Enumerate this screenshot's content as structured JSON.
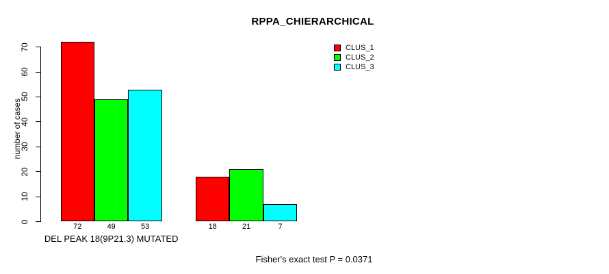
{
  "chart_data": {
    "type": "bar",
    "title": "RPPA_CHIERARCHICAL",
    "ylabel": "number of cases",
    "ylim": [
      0,
      70
    ],
    "yticks": [
      0,
      10,
      20,
      30,
      40,
      50,
      60,
      70
    ],
    "grid": false,
    "legend_position": "top-right",
    "group_labels": [
      "DEL PEAK 18(9P21.3) MUTATED",
      ""
    ],
    "series": [
      {
        "name": "CLUS_1",
        "color": "#FF0000",
        "values": [
          72,
          18
        ]
      },
      {
        "name": "CLUS_2",
        "color": "#00FF00",
        "values": [
          49,
          21
        ]
      },
      {
        "name": "CLUS_3",
        "color": "#00FFFF",
        "values": [
          53,
          7
        ]
      }
    ],
    "bar_value_labels": [
      [
        72,
        49,
        53
      ],
      [
        18,
        21,
        7
      ]
    ],
    "annotation": "Fisher's exact test P = 0.0371",
    "axis_color": "#000000",
    "background_color": "#FFFFFF"
  }
}
